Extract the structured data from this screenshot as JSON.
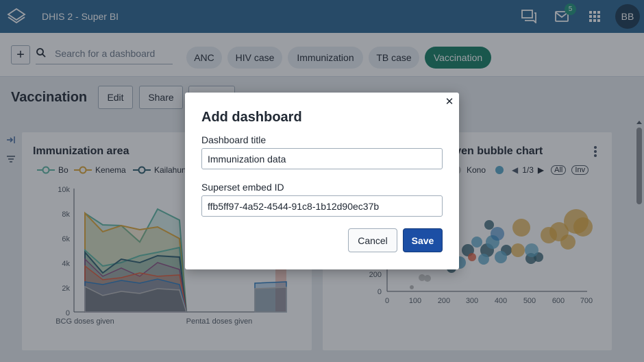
{
  "header": {
    "app_title": "DHIS 2 - Super BI",
    "messages_count": "5",
    "avatar_initials": "BB"
  },
  "dashbar": {
    "search_placeholder": "Search for a dashboard",
    "dashboards": [
      "ANC",
      "HIV case",
      "Immunization",
      "TB case",
      "Vaccination"
    ],
    "selected": "Vaccination"
  },
  "ctrlbar": {
    "title": "Vaccination",
    "edit_label": "Edit",
    "share_label": "Share"
  },
  "cards": {
    "left": {
      "title": "Immunization area",
      "legend": [
        "Bo",
        "Kenema",
        "Kailahun"
      ],
      "y_ticks": [
        "10k",
        "8k",
        "6k",
        "4k",
        "2k",
        "0"
      ],
      "x_ticks": [
        "BCG doses given",
        "Penta1 doses given"
      ]
    },
    "right": {
      "title": "given bubble chart",
      "legend_last": "Kono",
      "page_indicator": "1/3",
      "all_label": "All",
      "inv_label": "Inv",
      "y_ticks": [
        "200",
        "0"
      ],
      "x_ticks": [
        "0",
        "100",
        "200",
        "300",
        "400",
        "500",
        "600",
        "700"
      ]
    }
  },
  "modal": {
    "title": "Add dashboard",
    "title_label": "Dashboard title",
    "title_value": "Immunization data",
    "embed_label": "Superset embed ID",
    "embed_value": "ffb5ff97-4a52-4544-91c8-1b12d90ec37b",
    "cancel_label": "Cancel",
    "save_label": "Save"
  },
  "colors": {
    "header": "#2c6693",
    "selected_chip": "#147e63",
    "save_button": "#1c4fa5"
  }
}
